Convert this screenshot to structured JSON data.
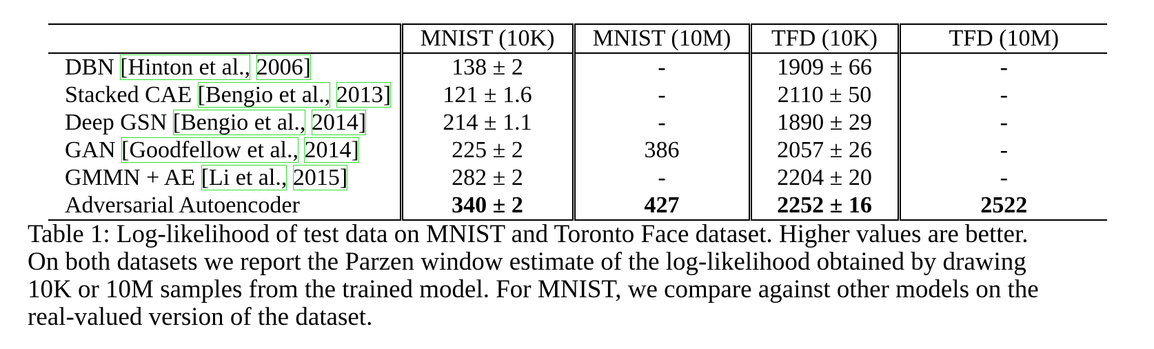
{
  "table": {
    "headers": [
      "",
      "MNIST (10K)",
      "MNIST (10M)",
      "TFD (10K)",
      "TFD (10M)"
    ],
    "rows": [
      {
        "model": {
          "name": "DBN ",
          "citation_author": "[Hinton et al.,",
          "citation_year": "2006]"
        },
        "mnist_10k": "138 ± 2",
        "mnist_10m": "-",
        "tfd_10k": "1909 ± 66",
        "tfd_10m": "-"
      },
      {
        "model": {
          "name": "Stacked CAE ",
          "citation_author": "[Bengio et al.,",
          "citation_year": "2013]"
        },
        "mnist_10k": "121 ± 1.6",
        "mnist_10m": "-",
        "tfd_10k": "2110 ± 50",
        "tfd_10m": "-"
      },
      {
        "model": {
          "name": "Deep GSN ",
          "citation_author": "[Bengio et al.,",
          "citation_year": "2014]"
        },
        "mnist_10k": "214 ± 1.1",
        "mnist_10m": "-",
        "tfd_10k": "1890 ± 29",
        "tfd_10m": "-"
      },
      {
        "model": {
          "name": "GAN ",
          "citation_author": "[Goodfellow et al.,",
          "citation_year": "2014]"
        },
        "mnist_10k": "225 ± 2",
        "mnist_10m": "386",
        "tfd_10k": "2057 ± 26",
        "tfd_10m": "-"
      },
      {
        "model": {
          "name": "GMMN + AE ",
          "citation_author": "[Li et al.,",
          "citation_year": "2015]"
        },
        "mnist_10k": "282 ± 2",
        "mnist_10m": "-",
        "tfd_10k": "2204 ± 20",
        "tfd_10m": "-"
      },
      {
        "model": {
          "name": "Adversarial Autoencoder",
          "citation_author": "",
          "citation_year": ""
        },
        "mnist_10k": "340 ± 2",
        "mnist_10m": "427",
        "tfd_10k": "2252 ± 16",
        "tfd_10m": "2522"
      }
    ]
  },
  "caption": {
    "line1": "Table 1: Log-likelihood of test data on MNIST and Toronto Face dataset. Higher values are better.",
    "line2": "On both datasets we report the Parzen window estimate of the log-likelihood obtained by drawing",
    "line3": "10K or 10M samples from the trained model. For MNIST, we compare against other models on the",
    "line4": "real-valued version of the dataset."
  },
  "colors": {
    "text": "#000000",
    "citation_box": "#33dd33"
  }
}
